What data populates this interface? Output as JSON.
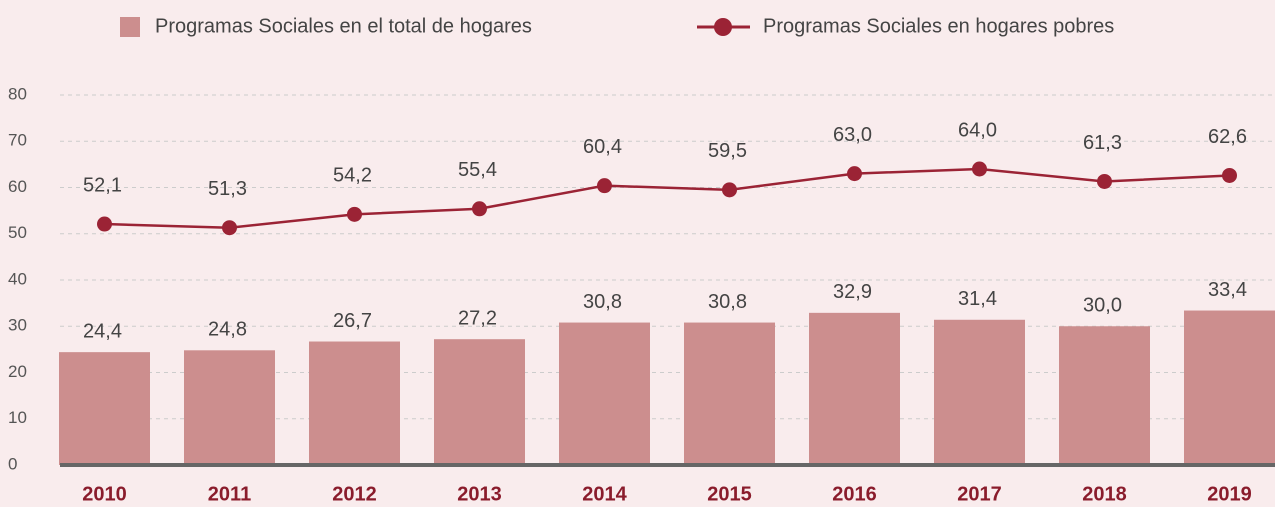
{
  "chart_data": {
    "type": "bar-line",
    "categories": [
      "2010",
      "2011",
      "2012",
      "2013",
      "2014",
      "2015",
      "2016",
      "2017",
      "2018",
      "2019"
    ],
    "series": [
      {
        "name": "Programas Sociales en el total de hogares",
        "type": "bar",
        "color": "#cc8e8e",
        "values": [
          24.4,
          24.8,
          26.7,
          27.2,
          30.8,
          30.8,
          32.9,
          31.4,
          30.0,
          33.4
        ],
        "value_labels": [
          "24,4",
          "24,8",
          "26,7",
          "27,2",
          "30,8",
          "30,8",
          "32,9",
          "31,4",
          "30,0",
          "33,4"
        ]
      },
      {
        "name": "Programas Sociales en hogares pobres",
        "type": "line",
        "color": "#9b2335",
        "values": [
          52.1,
          51.3,
          54.2,
          55.4,
          60.4,
          59.5,
          63.0,
          64.0,
          61.3,
          62.6
        ],
        "value_labels": [
          "52,1",
          "51,3",
          "54,2",
          "55,4",
          "60,4",
          "59,5",
          "63,0",
          "64,0",
          "61,3",
          "62,6"
        ]
      }
    ],
    "ylim": [
      0,
      80
    ],
    "yticks": [
      0,
      10,
      20,
      30,
      40,
      50,
      60,
      70,
      80
    ],
    "grid": true
  }
}
